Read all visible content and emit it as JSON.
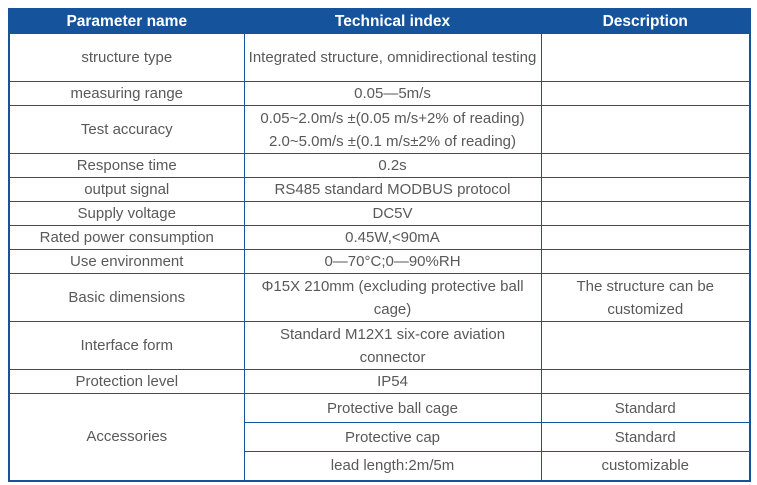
{
  "colors": {
    "accent": "#15549d",
    "header_text": "#ffffff",
    "body_text": "#595959"
  },
  "table": {
    "title": "technical-specifications",
    "header": {
      "parameter": "Parameter name",
      "index": "Technical index",
      "description": "Description"
    },
    "rows": [
      {
        "parameter": "structure type",
        "index": "Integrated structure, omnidirectional testing",
        "description": ""
      },
      {
        "parameter": "measuring range",
        "index": "0.05—5m/s",
        "description": ""
      },
      {
        "parameter": "Test accuracy",
        "index": "0.05~2.0m/s ±(0.05 m/s+2% of reading)\n2.0~5.0m/s ±(0.1 m/s±2% of reading)",
        "description": ""
      },
      {
        "parameter": "Response time",
        "index": "0.2s",
        "description": ""
      },
      {
        "parameter": "output signal",
        "index": "RS485 standard MODBUS protocol",
        "description": ""
      },
      {
        "parameter": "Supply voltage",
        "index": "DC5V",
        "description": ""
      },
      {
        "parameter": "Rated power consumption",
        "index": "0.45W,<90mA",
        "description": ""
      },
      {
        "parameter": "Use environment",
        "index": "0—70°C;0—90%RH",
        "description": ""
      },
      {
        "parameter": "Basic dimensions",
        "index": "Φ15X 210mm (excluding protective ball cage)",
        "description": "The structure can be customized"
      },
      {
        "parameter": "Interface form",
        "index": "Standard M12X1 six-core aviation connector",
        "description": ""
      },
      {
        "parameter": "Protection level",
        "index": "IP54",
        "description": ""
      }
    ],
    "accessories": {
      "parameter": "Accessories",
      "sub_rows": [
        {
          "index": "Protective ball cage",
          "description": "Standard"
        },
        {
          "index": "Protective cap",
          "description": "Standard"
        },
        {
          "index": "lead length:2m/5m",
          "description": "customizable"
        }
      ]
    }
  }
}
